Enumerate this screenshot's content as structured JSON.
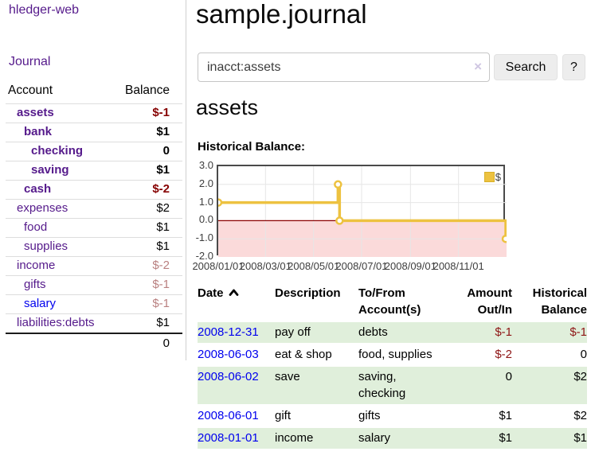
{
  "app": {
    "brand": "hledger-web",
    "nav_journal": "Journal"
  },
  "colors": {
    "link_purple": "#551a8b",
    "link_blue": "#0000ee",
    "negative_strong": "#860000",
    "negative_soft": "#b98080",
    "table_negative": "#8e1515",
    "row_green": "#e0efdb",
    "series_yellow": "#edc240",
    "negative_region": "#fbdada",
    "zero_line": "#8b0000"
  },
  "sidebar": {
    "header_account": "Account",
    "header_balance": "Balance",
    "accounts": [
      {
        "name": "assets",
        "balance": "$-1",
        "depth": 1,
        "bold": true
      },
      {
        "name": "bank",
        "balance": "$1",
        "depth": 2,
        "bold": true
      },
      {
        "name": "checking",
        "balance": "0",
        "depth": 3,
        "bold": true
      },
      {
        "name": "saving",
        "balance": "$1",
        "depth": 3,
        "bold": true
      },
      {
        "name": "cash",
        "balance": "$-2",
        "depth": 2,
        "bold": true
      },
      {
        "name": "expenses",
        "balance": "$2",
        "depth": 1,
        "bold": false
      },
      {
        "name": "food",
        "balance": "$1",
        "depth": 2,
        "bold": false
      },
      {
        "name": "supplies",
        "balance": "$1",
        "depth": 2,
        "bold": false
      },
      {
        "name": "income",
        "balance": "$-2",
        "depth": 1,
        "bold": false
      },
      {
        "name": "gifts",
        "balance": "$-1",
        "depth": 2,
        "bold": false
      },
      {
        "name": "salary",
        "balance": "$-1",
        "depth": 2,
        "bold": false,
        "link_style": "blue"
      },
      {
        "name": "liabilities:debts",
        "balance": "$1",
        "depth": 1,
        "bold": false
      }
    ],
    "total": "0"
  },
  "main": {
    "title": "sample.journal",
    "search": {
      "value": "inacct:assets",
      "clear_glyph": "×",
      "button_label": "Search",
      "help_label": "?"
    },
    "account_heading": "assets"
  },
  "chart_data": {
    "type": "line",
    "step": true,
    "title": "Historical Balance:",
    "series": [
      {
        "name": "$",
        "color": "#edc240",
        "points": [
          [
            "2008-01-01",
            1
          ],
          [
            "2008-06-01",
            2
          ],
          [
            "2008-06-03",
            0
          ],
          [
            "2008-12-31",
            -1
          ]
        ]
      }
    ],
    "x_ticks": [
      "2008/01/01",
      "2008/03/01",
      "2008/05/01",
      "2008/07/01",
      "2008/09/01",
      "2008/11/01"
    ],
    "y_ticks": [
      "3.0",
      "2.0",
      "1.0",
      "0.0",
      "-1.0",
      "-2.0"
    ],
    "ylim": [
      -2,
      3
    ],
    "x_range": [
      "2008-01-01",
      "2009-01-01"
    ],
    "grid": true,
    "legend_position": "top-right",
    "legend_label": "$",
    "negative_region_color": "#fbdada",
    "zero_line_color": "#8b0000"
  },
  "register": {
    "headers": [
      {
        "label": "Date",
        "sorted": "asc"
      },
      {
        "label": "Description"
      },
      {
        "label": "To/From Account(s)"
      },
      {
        "label": "Amount Out/In"
      },
      {
        "label": "Historical Balance"
      }
    ],
    "rows": [
      {
        "date": "2008-12-31",
        "description": "pay off",
        "accounts": "debts",
        "amount": "$-1",
        "balance": "$-1"
      },
      {
        "date": "2008-06-03",
        "description": "eat & shop",
        "accounts": "food, supplies",
        "amount": "$-2",
        "balance": "0"
      },
      {
        "date": "2008-06-02",
        "description": "save",
        "accounts": "saving, checking",
        "amount": "0",
        "balance": "$2"
      },
      {
        "date": "2008-06-01",
        "description": "gift",
        "accounts": "gifts",
        "amount": "$1",
        "balance": "$2"
      },
      {
        "date": "2008-01-01",
        "description": "income",
        "accounts": "salary",
        "amount": "$1",
        "balance": "$1"
      }
    ]
  }
}
